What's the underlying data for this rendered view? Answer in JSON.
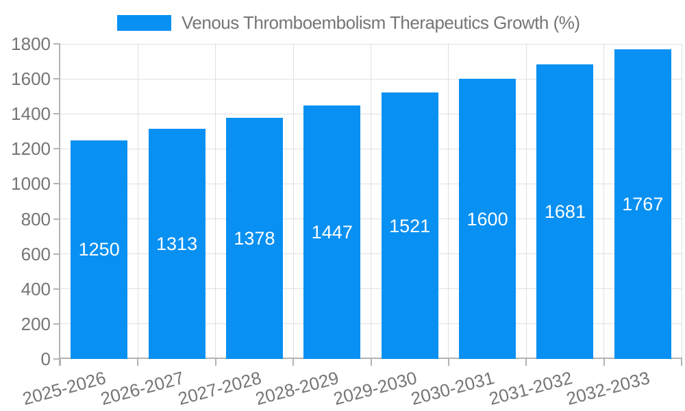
{
  "chart_data": {
    "type": "bar",
    "legend": {
      "label": "Venous Thromboembolism Therapeutics Growth (%)",
      "position": "top"
    },
    "categories": [
      "2025-2026",
      "2026-2027",
      "2027-2028",
      "2028-2029",
      "2029-2030",
      "2030-2031",
      "2031-2032",
      "2032-2033"
    ],
    "series": [
      {
        "name": "Venous Thromboembolism Therapeutics Growth (%)",
        "values": [
          1250,
          1313,
          1378,
          1447,
          1521,
          1600,
          1681,
          1767
        ]
      }
    ],
    "xlabel": "",
    "ylabel": "",
    "ylim": [
      0,
      1800
    ],
    "y_ticks": [
      0,
      200,
      400,
      600,
      800,
      1000,
      1200,
      1400,
      1600,
      1800
    ],
    "grid": true,
    "bar_value_labels_inside": true,
    "x_label_rotation_deg": -15,
    "colors": {
      "bar": "#0890f2",
      "bar_label": "#ffffff",
      "axis_text": "#757575",
      "grid_line": "#e0e0e0",
      "axis_line": "#b3b3b3",
      "legend_text": "#757575",
      "background": "#ffffff"
    }
  }
}
